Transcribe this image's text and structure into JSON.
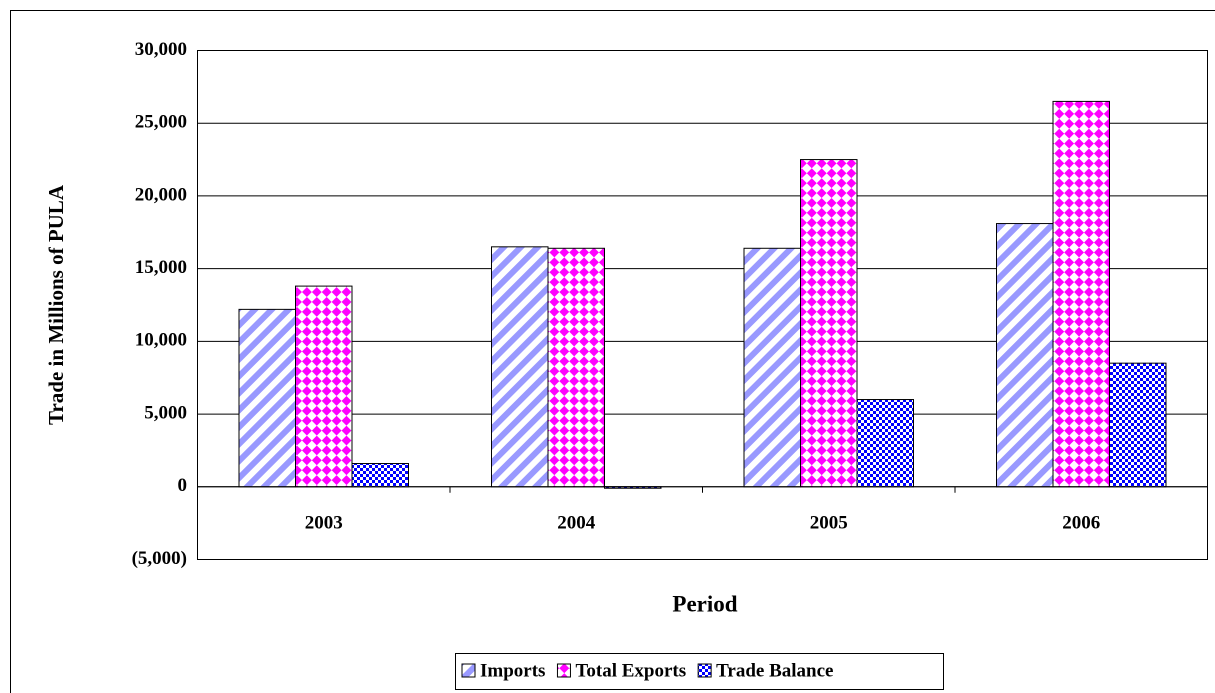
{
  "chart_data": {
    "type": "bar",
    "y_label": "Trade in Millions of PULA",
    "x_label": "Period",
    "categories": [
      "2003",
      "2004",
      "2005",
      "2006"
    ],
    "series": [
      {
        "name": "Imports",
        "color": "#9999ff",
        "values": [
          12200,
          16500,
          16400,
          18100
        ]
      },
      {
        "name": "Total Exports",
        "color": "#ff00ff",
        "values": [
          13800,
          16400,
          22500,
          26500
        ]
      },
      {
        "name": "Trade Balance",
        "color": "#0000ff",
        "values": [
          1600,
          -100,
          6000,
          8500
        ]
      }
    ],
    "ylim": [
      -5000,
      30000
    ],
    "yticks": [
      {
        "value": -5000,
        "label": "(5,000)"
      },
      0,
      {
        "value": 5000,
        "label": "5,000"
      },
      {
        "value": 10000,
        "label": "10,000"
      },
      {
        "value": 15000,
        "label": "15,000"
      },
      {
        "value": 20000,
        "label": "20,000"
      },
      {
        "value": 25000,
        "label": "25,000"
      },
      {
        "value": 30000,
        "label": "30,000"
      }
    ],
    "grid": true,
    "legend": "bottom"
  }
}
